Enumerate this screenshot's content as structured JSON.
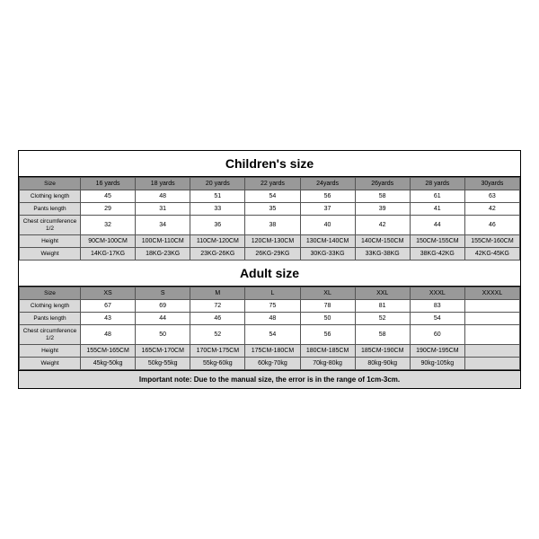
{
  "children": {
    "title": "Children's size",
    "row_labels": [
      "Size",
      "Clothing length",
      "Pants length",
      "Chest circumference 1/2",
      "Height",
      "Weight"
    ],
    "headers": [
      "16 yards",
      "18 yards",
      "20 yards",
      "22 yards",
      "24yards",
      "26yards",
      "28 yards",
      "30yards"
    ],
    "rows": [
      [
        "45",
        "48",
        "51",
        "54",
        "56",
        "58",
        "61",
        "63"
      ],
      [
        "29",
        "31",
        "33",
        "35",
        "37",
        "39",
        "41",
        "42"
      ],
      [
        "32",
        "34",
        "36",
        "38",
        "40",
        "42",
        "44",
        "46"
      ],
      [
        "90CM-100CM",
        "100CM-110CM",
        "110CM-120CM",
        "120CM-130CM",
        "130CM-140CM",
        "140CM-150CM",
        "150CM-155CM",
        "155CM-160CM"
      ],
      [
        "14KG-17KG",
        "18KG-23KG",
        "23KG-26KG",
        "26KG-29KG",
        "30KG-33KG",
        "33KG-38KG",
        "38KG-42KG",
        "42KG-45KG"
      ]
    ]
  },
  "adult": {
    "title": "Adult size",
    "row_labels": [
      "Size",
      "Clothing length",
      "Pants length",
      "Chest circumference 1/2",
      "Height",
      "Weight"
    ],
    "headers": [
      "XS",
      "S",
      "M",
      "L",
      "XL",
      "XXL",
      "XXXL",
      "XXXXL"
    ],
    "rows": [
      [
        "67",
        "69",
        "72",
        "75",
        "78",
        "81",
        "83",
        ""
      ],
      [
        "43",
        "44",
        "46",
        "48",
        "50",
        "52",
        "54",
        ""
      ],
      [
        "48",
        "50",
        "52",
        "54",
        "56",
        "58",
        "60",
        ""
      ],
      [
        "155CM-165CM",
        "165CM-170CM",
        "170CM-175CM",
        "175CM-180CM",
        "180CM-185CM",
        "185CM-190CM",
        "190CM-195CM",
        ""
      ],
      [
        "45kg-50kg",
        "50kg-55kg",
        "55kg-60kg",
        "60kg-70kg",
        "70kg-80kg",
        "80kg-90kg",
        "90kg-105kg",
        ""
      ]
    ]
  },
  "note": "Important note: Due to the manual size, the error is in the range of 1cm-3cm.",
  "style": {
    "header_bg": "#999999",
    "label_bg": "#d9d9d9",
    "shade_bg": "#d9d9d9",
    "border_color": "#555555",
    "title_fontsize": 14,
    "cell_fontsize": 7
  }
}
